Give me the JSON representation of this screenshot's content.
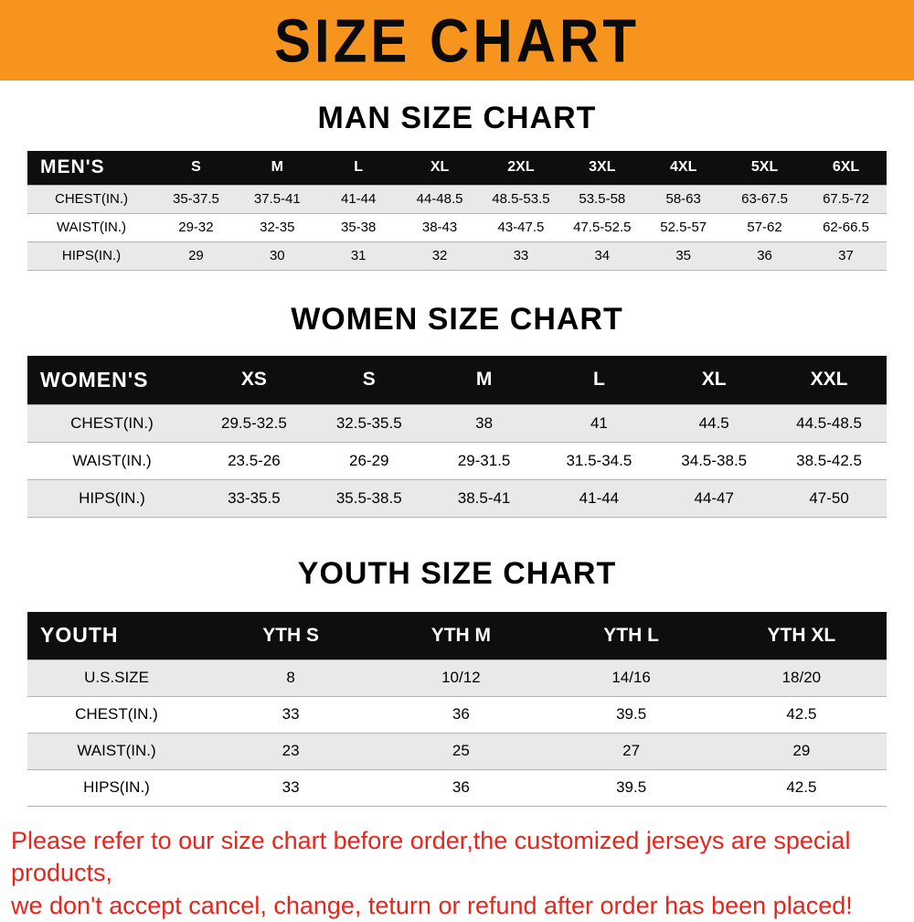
{
  "banner": {
    "title": "SIZE CHART"
  },
  "colors": {
    "banner_bg": "#F7941D",
    "table_header_bg": "#0e0e0e",
    "row_stripe": "#e9e9e9",
    "footer_text": "#e8251d"
  },
  "chart_data": [
    {
      "type": "table",
      "title": "MAN SIZE CHART",
      "header": [
        "MEN'S",
        "S",
        "M",
        "L",
        "XL",
        "2XL",
        "3XL",
        "4XL",
        "5XL",
        "6XL"
      ],
      "rows": [
        [
          "CHEST(IN.)",
          "35-37.5",
          "37.5-41",
          "41-44",
          "44-48.5",
          "48.5-53.5",
          "53.5-58",
          "58-63",
          "63-67.5",
          "67.5-72"
        ],
        [
          "WAIST(IN.)",
          "29-32",
          "32-35",
          "35-38",
          "38-43",
          "43-47.5",
          "47.5-52.5",
          "52.5-57",
          "57-62",
          "62-66.5"
        ],
        [
          "HIPS(IN.)",
          "29",
          "30",
          "31",
          "32",
          "33",
          "34",
          "35",
          "36",
          "37"
        ]
      ]
    },
    {
      "type": "table",
      "title": "WOMEN SIZE CHART",
      "header": [
        "WOMEN'S",
        "XS",
        "S",
        "M",
        "L",
        "XL",
        "XXL"
      ],
      "rows": [
        [
          "CHEST(IN.)",
          "29.5-32.5",
          "32.5-35.5",
          "38",
          "41",
          "44.5",
          "44.5-48.5"
        ],
        [
          "WAIST(IN.)",
          "23.5-26",
          "26-29",
          "29-31.5",
          "31.5-34.5",
          "34.5-38.5",
          "38.5-42.5"
        ],
        [
          "HIPS(IN.)",
          "33-35.5",
          "35.5-38.5",
          "38.5-41",
          "41-44",
          "44-47",
          "47-50"
        ]
      ]
    },
    {
      "type": "table",
      "title": "YOUTH SIZE CHART",
      "header": [
        "YOUTH",
        "YTH S",
        "YTH M",
        "YTH L",
        "YTH XL"
      ],
      "rows": [
        [
          "U.S.SIZE",
          "8",
          "10/12",
          "14/16",
          "18/20"
        ],
        [
          "CHEST(IN.)",
          "33",
          "36",
          "39.5",
          "42.5"
        ],
        [
          "WAIST(IN.)",
          "23",
          "25",
          "27",
          "29"
        ],
        [
          "HIPS(IN.)",
          "33",
          "36",
          "39.5",
          "42.5"
        ]
      ]
    }
  ],
  "footer": {
    "line1": "Please refer to our size chart before order,the customized jerseys are special products,",
    "line2": "we don't accept cancel, change, teturn or refund after order has been placed!"
  }
}
